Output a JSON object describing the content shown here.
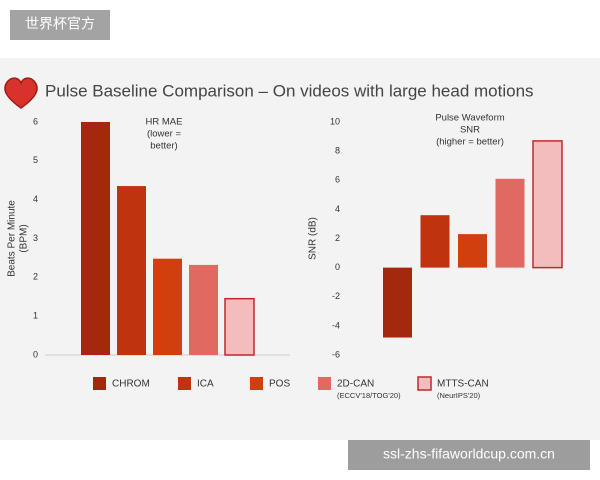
{
  "watermark": "世界杯官方",
  "source": "ssl-zhs-fifaworldcup.com.cn",
  "title": "Pulse Baseline Comparison – On videos with large head motions",
  "chart_data": [
    {
      "type": "bar",
      "title": [
        "HR MAE",
        "(lower =",
        "better)"
      ],
      "ylabel": [
        "Beats Per Minute",
        "(BPM)"
      ],
      "values": [
        6.0,
        4.35,
        2.48,
        2.32,
        1.45
      ],
      "ylim": [
        0,
        6
      ],
      "yticks": [
        0,
        1,
        2,
        3,
        4,
        5,
        6
      ]
    },
    {
      "type": "bar",
      "title": [
        "Pulse Waveform",
        "SNR",
        "(higher = better)"
      ],
      "ylabel": [
        "SNR (dB)"
      ],
      "values": [
        -4.8,
        3.6,
        2.3,
        6.1,
        8.7
      ],
      "ylim": [
        -6,
        10
      ],
      "yticks": [
        -6,
        -4,
        -2,
        0,
        2,
        4,
        6,
        8,
        10
      ]
    }
  ],
  "legend": {
    "items": [
      {
        "name": "CHROM",
        "color": "#a4280e"
      },
      {
        "name": "ICA",
        "color": "#c0330f"
      },
      {
        "name": "POS",
        "color": "#d13f0f"
      },
      {
        "name": "2D-CAN",
        "color": "#e06a62",
        "note": "(ECCV'18/TOG'20)"
      },
      {
        "name": "MTTS-CAN",
        "color": "#f4bdbd",
        "note": "(NeurIPS'20)",
        "border": "#c0282c"
      }
    ]
  }
}
